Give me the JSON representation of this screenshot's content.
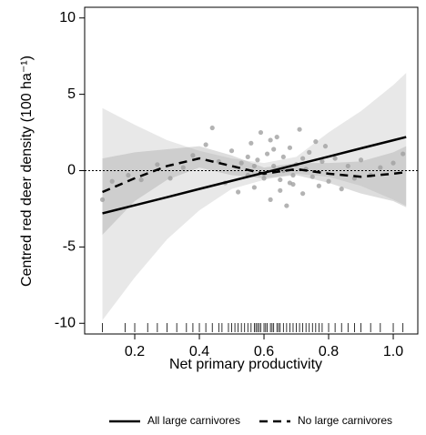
{
  "chart_data": {
    "type": "scatter",
    "xlabel": "Net primary productivity",
    "ylabel": "Centred red deer density (100 ha⁻¹)",
    "xlim": [
      0.045,
      1.076
    ],
    "ylim": [
      -10.7,
      10.7
    ],
    "xticks": [
      0.2,
      0.4,
      0.6,
      0.8,
      {
        "value": 1.0,
        "label": "1.0"
      }
    ],
    "yticks": [
      -10,
      -5,
      0,
      5,
      10
    ],
    "hline": 0,
    "x": [
      0.1,
      0.2,
      0.3,
      0.4,
      0.5,
      0.6,
      0.7,
      0.8,
      0.9,
      1.0,
      1.04
    ],
    "series": [
      {
        "name": "All large carnivores",
        "color": "#000000",
        "dash": "solid",
        "band_color": "#bdbdbd",
        "values": [
          -2.8,
          -2.27,
          -1.74,
          -1.2,
          -0.67,
          -0.14,
          0.39,
          0.92,
          1.46,
          1.99,
          2.2
        ],
        "lower": [
          -9.8,
          -7.0,
          -4.5,
          -2.6,
          -1.2,
          -0.6,
          -0.2,
          -0.4,
          -1.0,
          -1.9,
          -2.3
        ],
        "upper": [
          4.1,
          3.0,
          2.0,
          1.3,
          0.8,
          0.5,
          0.9,
          2.5,
          3.9,
          5.6,
          6.4
        ]
      },
      {
        "name": "No large carnivores",
        "color": "#000000",
        "dash": "dashed",
        "band_color": "#9e9e9e",
        "values": [
          -1.4,
          -0.5,
          0.3,
          0.8,
          0.3,
          -0.2,
          0.1,
          -0.2,
          -0.4,
          -0.2,
          -0.1
        ],
        "lower": [
          -4.2,
          -2.0,
          -0.6,
          0.2,
          -0.3,
          -0.5,
          -0.3,
          -0.8,
          -1.5,
          -2.0,
          -2.4
        ],
        "upper": [
          0.8,
          1.2,
          1.4,
          1.6,
          1.0,
          0.2,
          0.5,
          0.5,
          0.6,
          1.2,
          1.6
        ]
      }
    ],
    "points": {
      "color": "#a0a0a0",
      "x": [
        0.1,
        0.13,
        0.18,
        0.22,
        0.27,
        0.31,
        0.35,
        0.38,
        0.42,
        0.44,
        0.46,
        0.48,
        0.5,
        0.52,
        0.53,
        0.55,
        0.56,
        0.57,
        0.58,
        0.59,
        0.6,
        0.61,
        0.62,
        0.63,
        0.64,
        0.65,
        0.66,
        0.67,
        0.68,
        0.69,
        0.7,
        0.71,
        0.72,
        0.73,
        0.74,
        0.75,
        0.76,
        0.77,
        0.78,
        0.79,
        0.8,
        0.82,
        0.84,
        0.86,
        0.88,
        0.9,
        0.93,
        0.96,
        1.0,
        1.03,
        0.57,
        0.6,
        0.63,
        0.66,
        0.69,
        0.72,
        0.62,
        0.65,
        0.68,
        0.55
      ],
      "y": [
        -1.9,
        -0.7,
        -0.3,
        -0.6,
        0.4,
        -0.5,
        0.2,
        1.0,
        1.7,
        2.8,
        0.6,
        -0.8,
        1.3,
        -1.4,
        0.5,
        -0.3,
        1.8,
        -1.1,
        0.7,
        2.5,
        -0.2,
        1.1,
        -1.9,
        0.3,
        2.2,
        -0.6,
        0.9,
        -2.3,
        1.5,
        -0.9,
        0.4,
        2.7,
        -1.5,
        0.1,
        1.2,
        -0.4,
        1.9,
        -1.0,
        0.6,
        1.6,
        -0.7,
        0.8,
        -1.2,
        0.3,
        -0.5,
        0.7,
        -0.3,
        0.2,
        0.5,
        1.1,
        0.3,
        -0.5,
        1.4,
        0.0,
        -0.3,
        0.8,
        2.0,
        -1.3,
        -0.8,
        0.9
      ]
    },
    "rug": [
      0.1,
      0.17,
      0.2,
      0.24,
      0.27,
      0.3,
      0.33,
      0.36,
      0.38,
      0.4,
      0.42,
      0.44,
      0.46,
      0.47,
      0.49,
      0.5,
      0.51,
      0.52,
      0.53,
      0.54,
      0.55,
      0.56,
      0.57,
      0.575,
      0.58,
      0.585,
      0.59,
      0.6,
      0.605,
      0.61,
      0.62,
      0.625,
      0.63,
      0.64,
      0.645,
      0.65,
      0.66,
      0.67,
      0.68,
      0.69,
      0.7,
      0.71,
      0.72,
      0.73,
      0.74,
      0.75,
      0.76,
      0.77,
      0.78,
      0.8,
      0.82,
      0.84,
      0.86,
      0.88,
      0.9,
      0.93,
      0.96,
      1.0,
      1.03
    ],
    "legend": "bottom"
  }
}
